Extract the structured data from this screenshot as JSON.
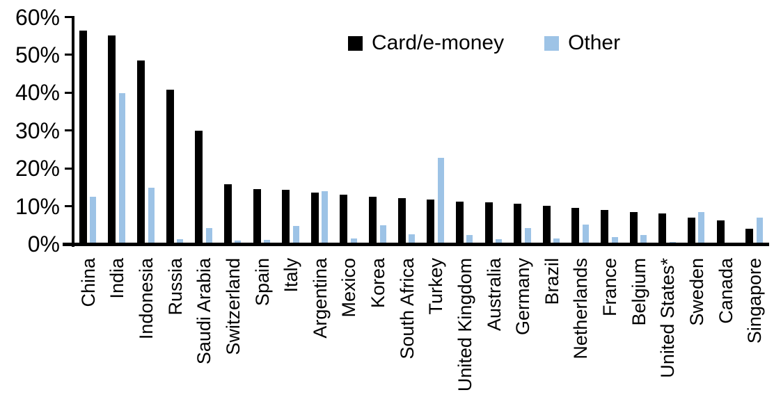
{
  "chart_data": {
    "type": "bar",
    "title": "",
    "xlabel": "",
    "ylabel": "",
    "ylim": [
      0,
      60
    ],
    "grid": false,
    "legend_position": "top-center",
    "y_ticks": [
      {
        "value": 0,
        "label": "0%"
      },
      {
        "value": 10,
        "label": "10%"
      },
      {
        "value": 20,
        "label": "20%"
      },
      {
        "value": 30,
        "label": "30%"
      },
      {
        "value": 40,
        "label": "40%"
      },
      {
        "value": 50,
        "label": "50%"
      },
      {
        "value": 60,
        "label": "60%"
      }
    ],
    "categories": [
      "China",
      "India",
      "Indonesia",
      "Russia",
      "Saudi Arabia",
      "Switzerland",
      "Spain",
      "Italy",
      "Argentina",
      "Mexico",
      "Korea",
      "South Africa",
      "Turkey",
      "United Kingdom",
      "Australia",
      "Germany",
      "Brazil",
      "Netherlands",
      "France",
      "Belgium",
      "United States*",
      "Sweden",
      "Canada",
      "Singapore"
    ],
    "series": [
      {
        "name": "Card/e-money",
        "color": "#000000",
        "values": [
          56.5,
          55.2,
          48.5,
          40.8,
          30.0,
          15.8,
          14.5,
          14.3,
          13.6,
          13.1,
          12.5,
          12.1,
          11.8,
          11.3,
          11.0,
          10.7,
          10.1,
          9.5,
          9.0,
          8.5,
          8.1,
          6.9,
          6.2,
          4.1
        ]
      },
      {
        "name": "Other",
        "color": "#9DC3E6",
        "values": [
          12.5,
          39.8,
          14.8,
          1.2,
          4.2,
          0.9,
          1.1,
          4.8,
          14.0,
          1.5,
          4.9,
          2.5,
          22.8,
          2.4,
          1.2,
          4.3,
          1.4,
          5.1,
          1.8,
          2.3,
          0.5,
          8.5,
          0.0,
          7.0
        ]
      }
    ]
  }
}
